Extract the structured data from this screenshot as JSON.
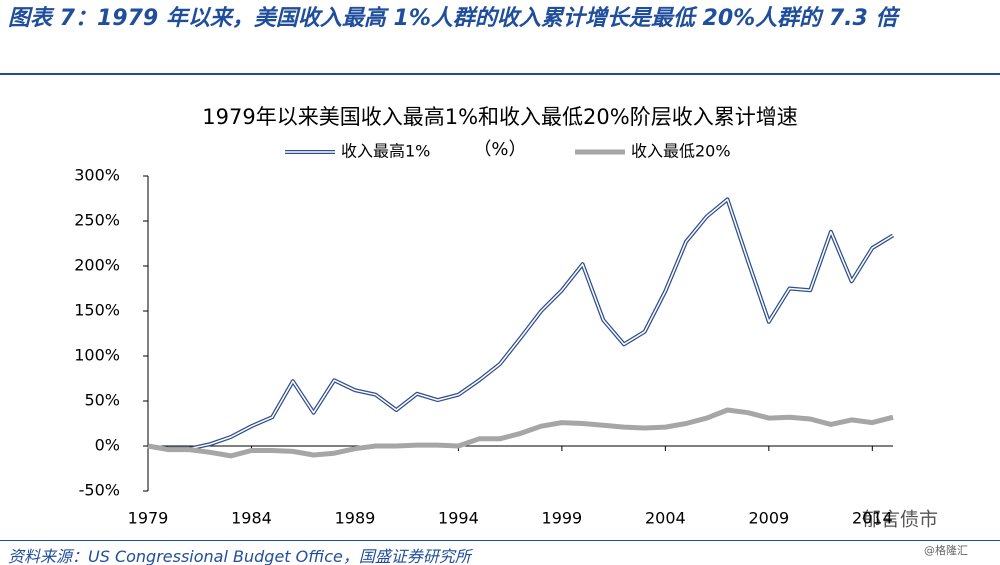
{
  "header": {
    "title": "图表 7：1979 年以来，美国收入最高 1%人群的收入累计增长是最低 20%人群的 7.3 倍"
  },
  "chart_data": {
    "type": "line",
    "title": "1979年以来美国收入最高1%和收入最低20%阶层收入累计增速",
    "subtitle": "（%）",
    "x": [
      1979,
      1980,
      1981,
      1982,
      1983,
      1984,
      1985,
      1986,
      1987,
      1988,
      1989,
      1990,
      1991,
      1992,
      1993,
      1994,
      1995,
      1996,
      1997,
      1998,
      1999,
      2000,
      2001,
      2002,
      2003,
      2004,
      2005,
      2006,
      2007,
      2008,
      2009,
      2010,
      2011,
      2012,
      2013,
      2014,
      2015
    ],
    "xlim": [
      1979,
      2015
    ],
    "xticks": [
      1979,
      1984,
      1989,
      1994,
      1999,
      2004,
      2009,
      2014
    ],
    "ylim": [
      -50,
      300
    ],
    "yticks": [
      {
        "value": -50,
        "label": "-50%"
      },
      {
        "value": 0,
        "label": "0%"
      },
      {
        "value": 50,
        "label": "50%"
      },
      {
        "value": 100,
        "label": "100%"
      },
      {
        "value": 150,
        "label": "150%"
      },
      {
        "value": 200,
        "label": "200%"
      },
      {
        "value": 250,
        "label": "250%"
      },
      {
        "value": 300,
        "label": "300%"
      }
    ],
    "series": [
      {
        "name": "收入最高1%",
        "color": "#2f4f8f",
        "style": "double",
        "values": [
          0,
          -3,
          -3,
          2,
          10,
          22,
          32,
          72,
          37,
          73,
          62,
          57,
          40,
          58,
          51,
          57,
          73,
          91,
          120,
          150,
          173,
          202,
          140,
          113,
          127,
          172,
          227,
          255,
          274,
          205,
          138,
          175,
          173,
          238,
          183,
          220,
          234
        ]
      },
      {
        "name": "收入最低20%",
        "color": "#a6a6a6",
        "style": "solid",
        "values": [
          0,
          -4,
          -4,
          -7,
          -11,
          -5,
          -5,
          -6,
          -10,
          -8,
          -3,
          0,
          0,
          1,
          1,
          0,
          8,
          8,
          14,
          22,
          26,
          25,
          23,
          21,
          20,
          21,
          25,
          31,
          40,
          37,
          31,
          32,
          30,
          24,
          29,
          26,
          32
        ]
      }
    ]
  },
  "source": "资料来源：US Congressional Budget Office，国盛证券研究所",
  "watermark": {
    "account": "郁言债市",
    "credit": "@格隆汇"
  }
}
